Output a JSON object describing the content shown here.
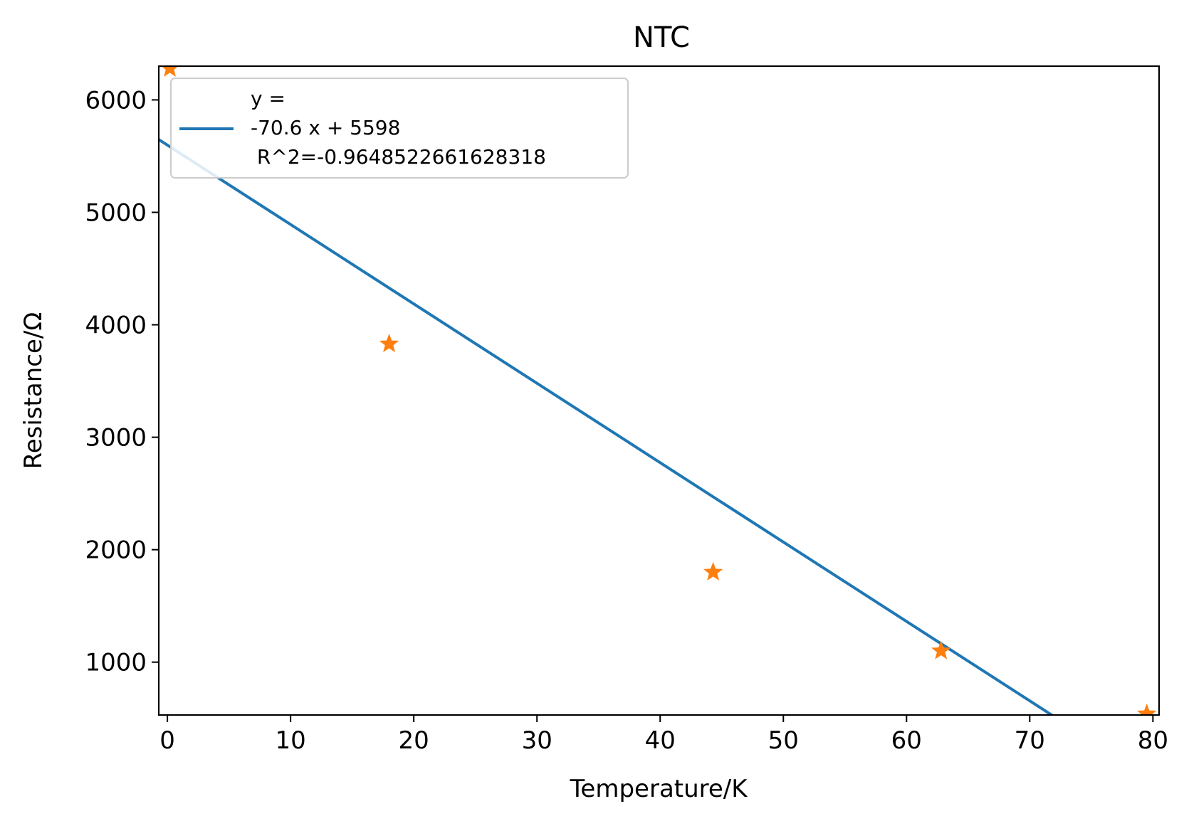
{
  "chart_data": {
    "type": "scatter",
    "title": "NTC",
    "xlabel": "Temperature/K",
    "ylabel": "Resistance/Ω",
    "xlim": [
      -0.7,
      80.5
    ],
    "ylim": [
      530,
      6300
    ],
    "x_ticks": [
      0,
      10,
      20,
      30,
      40,
      50,
      60,
      70,
      80
    ],
    "y_ticks": [
      1000,
      2000,
      3000,
      4000,
      5000,
      6000
    ],
    "grid": false,
    "legend_position": "upper-left",
    "fit": {
      "slope": -70.6,
      "intercept": 5598,
      "color": "#1f77b4",
      "legend_lines": [
        "y =",
        "-70.6 x + 5598",
        " R^2=-0.9648522661628318"
      ]
    },
    "points": {
      "marker": "star",
      "color": "#ff7f0e",
      "x": [
        0.2,
        18.0,
        44.3,
        62.8,
        79.5
      ],
      "y": [
        6280,
        3830,
        1800,
        1100,
        540
      ]
    }
  }
}
